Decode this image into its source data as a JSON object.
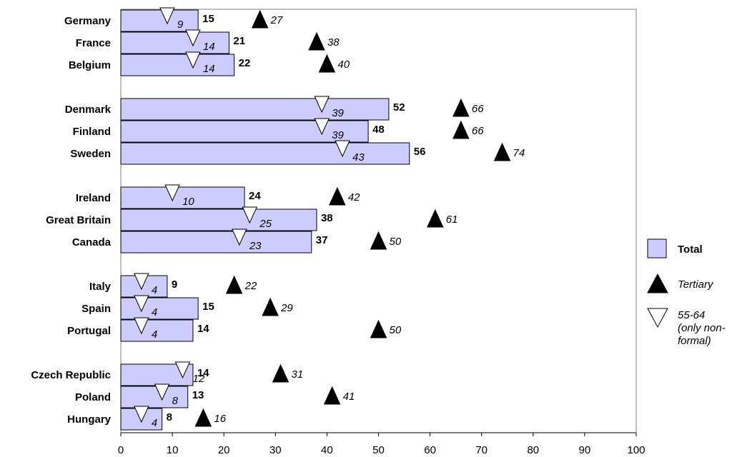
{
  "chart_data": {
    "type": "bar",
    "orientation": "horizontal",
    "categories": [
      "Germany",
      "France",
      "Belgium",
      "Denmark",
      "Finland",
      "Sweden",
      "Ireland",
      "Great Britain",
      "Canada",
      "Italy",
      "Spain",
      "Portugal",
      "Czech Republic",
      "Poland",
      "Hungary"
    ],
    "groups": [
      [
        "Germany",
        "France",
        "Belgium"
      ],
      [
        "Denmark",
        "Finland",
        "Sweden"
      ],
      [
        "Ireland",
        "Great Britain",
        "Canada"
      ],
      [
        "Italy",
        "Spain",
        "Portugal"
      ],
      [
        "Czech Republic",
        "Poland",
        "Hungary"
      ]
    ],
    "series": [
      {
        "name": "Total",
        "marker": "bar",
        "values": [
          15,
          21,
          22,
          52,
          48,
          56,
          24,
          38,
          37,
          9,
          15,
          14,
          14,
          13,
          8
        ]
      },
      {
        "name": "Tertiary",
        "marker": "filled-triangle-up",
        "values": [
          27,
          38,
          40,
          66,
          66,
          74,
          42,
          61,
          50,
          22,
          29,
          50,
          31,
          41,
          16
        ]
      },
      {
        "name": "55-64 (only non-formal)",
        "marker": "open-triangle-down",
        "values": [
          9,
          14,
          14,
          39,
          39,
          43,
          10,
          25,
          23,
          4,
          4,
          4,
          12,
          8,
          4
        ]
      }
    ],
    "xlim": [
      0,
      100
    ],
    "xticks": [
      0,
      10,
      20,
      30,
      40,
      50,
      60,
      70,
      80,
      90,
      100
    ],
    "legend_position": "right",
    "grid": false,
    "colors": {
      "bar_fill": "#ccccff",
      "bar_stroke": "#000000",
      "tertiary": "#000000",
      "older": "#ffffff"
    }
  },
  "legend": {
    "total": "Total",
    "tertiary": "Tertiary",
    "older_line1": "55-64",
    "older_line2": "(only non-",
    "older_line3": "formal)"
  }
}
